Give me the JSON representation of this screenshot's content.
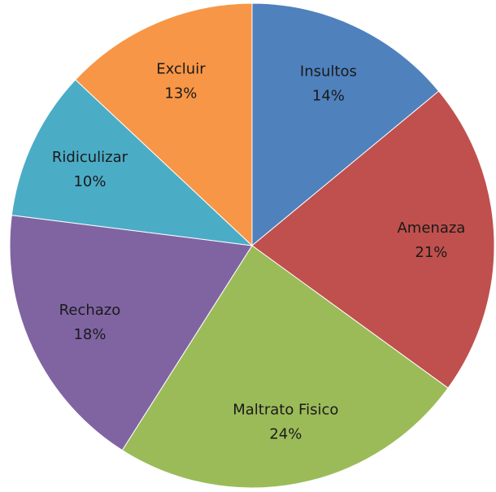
{
  "chart_data": {
    "type": "pie",
    "categories": [
      "Insultos",
      "Amenaza",
      "Maltrato Fisico",
      "Rechazo",
      "Ridiculizar",
      "Excluir"
    ],
    "values": [
      14,
      21,
      24,
      18,
      10,
      13
    ],
    "value_labels": [
      "14%",
      "21%",
      "24%",
      "18%",
      "10%",
      "13%"
    ],
    "colors": [
      "#4f81bd",
      "#c0504d",
      "#9bbb59",
      "#8064a2",
      "#4bacc6",
      "#f79646"
    ]
  }
}
